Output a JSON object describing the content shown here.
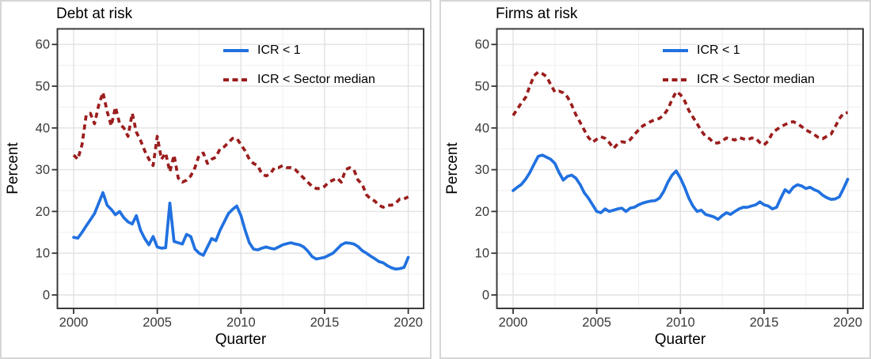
{
  "legend": {
    "items": [
      {
        "label": "ICR < 1",
        "style": "solid",
        "color": "#2171E0"
      },
      {
        "label": "ICR < Sector median",
        "style": "dashed",
        "color": "#9B1D1D"
      }
    ]
  },
  "chart_data": [
    {
      "type": "line",
      "title": "Debt at risk",
      "xlabel": "Quarter",
      "ylabel": "Percent",
      "x_start": 2000,
      "x_step": 0.25,
      "x_ticks": [
        2000,
        2005,
        2010,
        2015,
        2020
      ],
      "y_ticks": [
        0,
        10,
        20,
        30,
        40,
        50,
        60
      ],
      "ylim": [
        -3,
        64
      ],
      "xlim": [
        1999,
        2021
      ],
      "grid": "major and minor, light gray",
      "legend_position": "inside top-right",
      "series": [
        {
          "name": "ICR < 1",
          "style": "solid",
          "color": "#2171E0",
          "values": [
            13.8,
            13.6,
            15,
            16.5,
            18,
            19.5,
            22,
            24.5,
            21.5,
            20.5,
            19.2,
            20,
            18.5,
            17.5,
            17,
            19,
            15.5,
            13.5,
            12,
            14,
            11.5,
            11.2,
            11.3,
            22,
            12.8,
            12.5,
            12.2,
            14.5,
            14,
            11,
            10,
            9.5,
            11.5,
            13.5,
            13,
            15.5,
            17.5,
            19.5,
            20.5,
            21.3,
            19,
            15.5,
            12.5,
            11,
            10.8,
            11.2,
            11.5,
            11.2,
            11,
            11.5,
            12,
            12.3,
            12.5,
            12.2,
            12,
            11.5,
            10.5,
            9.2,
            8.6,
            8.8,
            9,
            9.5,
            10,
            11,
            12,
            12.5,
            12.4,
            12.2,
            11.6,
            10.6,
            10,
            9.3,
            8.7,
            8,
            7.7,
            7,
            6.5,
            6.2,
            6.3,
            6.6,
            9
          ]
        },
        {
          "name": "ICR < Sector median",
          "style": "dashed",
          "color": "#9B1D1D",
          "values": [
            33.5,
            32.5,
            36,
            43,
            43.5,
            41,
            45.5,
            48.5,
            44,
            40.5,
            45,
            41,
            40,
            38,
            43.5,
            39,
            37,
            34.5,
            32.5,
            31,
            38,
            32.5,
            34,
            29.5,
            33.5,
            28,
            27,
            27.5,
            28.5,
            30.5,
            33.5,
            34,
            31.5,
            32.5,
            33,
            35,
            35.5,
            36.5,
            37.5,
            37.5,
            36,
            34.5,
            32.5,
            31.5,
            31,
            29,
            28.5,
            29,
            30.5,
            30.5,
            31,
            30.5,
            30.5,
            30,
            29,
            28,
            27,
            26,
            25.5,
            25.5,
            26,
            27,
            27.5,
            28,
            27,
            30,
            30.5,
            30,
            27.5,
            26.5,
            24,
            23,
            22.5,
            21.5,
            21,
            21.5,
            21.5,
            22,
            23,
            23,
            23.5
          ]
        }
      ]
    },
    {
      "type": "line",
      "title": "Firms at risk",
      "xlabel": "Quarter",
      "ylabel": "Percent",
      "x_start": 2000,
      "x_step": 0.25,
      "x_ticks": [
        2000,
        2005,
        2010,
        2015,
        2020
      ],
      "y_ticks": [
        0,
        10,
        20,
        30,
        40,
        50,
        60
      ],
      "ylim": [
        -3,
        64
      ],
      "xlim": [
        1999,
        2021
      ],
      "grid": "major and minor, light gray",
      "legend_position": "inside top-right",
      "series": [
        {
          "name": "ICR < 1",
          "style": "solid",
          "color": "#2171E0",
          "values": [
            25,
            25.8,
            26.5,
            27.7,
            29.3,
            31.3,
            33.2,
            33.5,
            33,
            32.5,
            31.5,
            29.3,
            27.5,
            28.4,
            28.7,
            28,
            26.5,
            24.5,
            23.2,
            21.6,
            20,
            19.7,
            20.6,
            20,
            20.3,
            20.6,
            20.8,
            20,
            20.8,
            21,
            21.6,
            22,
            22.3,
            22.5,
            22.6,
            23.2,
            24.8,
            27,
            28.7,
            29.7,
            28,
            25.8,
            23.2,
            21.3,
            20,
            20.3,
            19.3,
            19,
            18.7,
            18.1,
            19,
            19.7,
            19.3,
            20,
            20.6,
            21,
            21,
            21.3,
            21.6,
            22.3,
            21.6,
            21.3,
            20.6,
            21,
            23.2,
            25.2,
            24.5,
            25.8,
            26.4,
            26.1,
            25.5,
            25.8,
            25.2,
            24.8,
            23.9,
            23.3,
            22.9,
            23,
            23.5,
            25.5,
            27.7
          ]
        },
        {
          "name": "ICR < Sector median",
          "style": "dashed",
          "color": "#9B1D1D",
          "values": [
            43,
            44.5,
            46,
            47.3,
            50,
            52.5,
            53.4,
            53,
            52.3,
            50.4,
            48.6,
            48.8,
            48.4,
            47.4,
            45.5,
            43.2,
            41.4,
            39.5,
            37.7,
            36.6,
            37.3,
            37.9,
            37.5,
            36.5,
            35.1,
            36.2,
            36.7,
            36.5,
            37.2,
            38.4,
            39.5,
            40.5,
            41,
            41.6,
            42,
            42.3,
            43.1,
            44.5,
            46.8,
            48.7,
            48,
            46.5,
            44.2,
            42.6,
            41,
            39.3,
            38,
            37.4,
            36.4,
            36.4,
            36.9,
            37.6,
            37.4,
            37.1,
            37.7,
            37.4,
            37.1,
            37.6,
            37.5,
            36.5,
            35.9,
            36.9,
            38.8,
            39.6,
            40.3,
            40.8,
            41.3,
            41.5,
            41,
            40.3,
            39.5,
            39,
            38.4,
            37.7,
            37.4,
            38,
            38.5,
            40.3,
            42.2,
            43.5,
            43.7
          ]
        }
      ]
    }
  ]
}
